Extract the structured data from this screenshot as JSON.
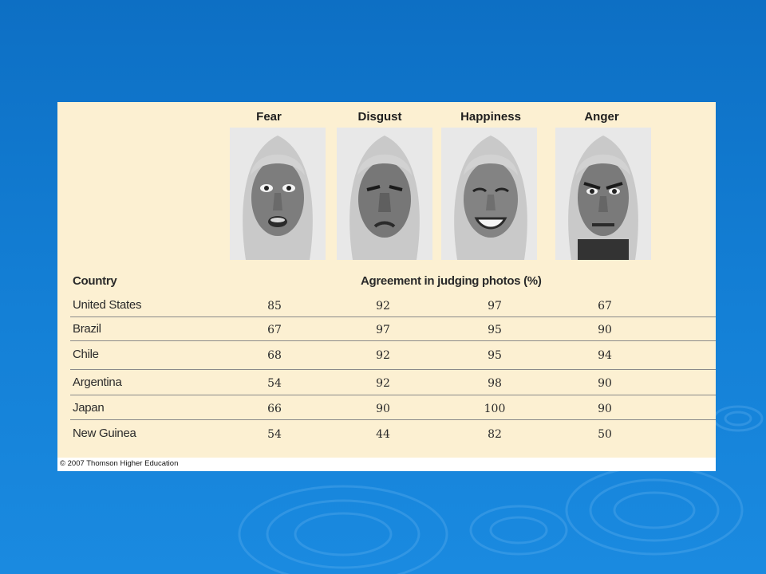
{
  "emotions": [
    "Fear",
    "Disgust",
    "Happiness",
    "Anger"
  ],
  "table": {
    "country_header": "Country",
    "agreement_header": "Agreement in judging photos (%)",
    "rows": [
      {
        "country": "United States",
        "values": [
          "85",
          "92",
          "97",
          "67"
        ]
      },
      {
        "country": "Brazil",
        "values": [
          "67",
          "97",
          "95",
          "90"
        ]
      },
      {
        "country": "Chile",
        "values": [
          "68",
          "92",
          "95",
          "94"
        ]
      },
      {
        "country": "Argentina",
        "values": [
          "54",
          "92",
          "98",
          "90"
        ]
      },
      {
        "country": "Japan",
        "values": [
          "66",
          "90",
          "100",
          "90"
        ]
      },
      {
        "country": "New Guinea",
        "values": [
          "54",
          "44",
          "82",
          "50"
        ]
      }
    ]
  },
  "copyright": "© 2007 Thomson Higher Education",
  "colors": {
    "background": "#1480d6",
    "panel": "#fcf0d2",
    "rule": "#8a8a8a"
  }
}
